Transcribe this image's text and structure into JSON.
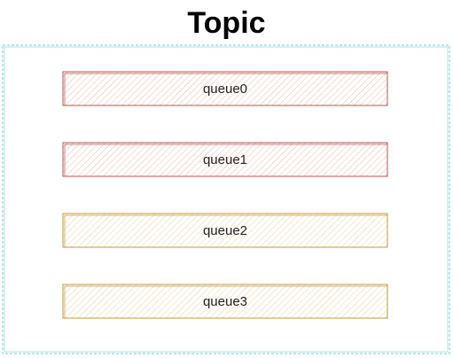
{
  "diagram": {
    "title": "Topic",
    "queues": [
      {
        "label": "queue0",
        "stroke": "#b85450",
        "hatch": "#e07a5f"
      },
      {
        "label": "queue1",
        "stroke": "#b85450",
        "hatch": "#e07a5f"
      },
      {
        "label": "queue2",
        "stroke": "#c49a3a",
        "hatch": "#f0c070"
      },
      {
        "label": "queue3",
        "stroke": "#c49a3a",
        "hatch": "#f0c070"
      }
    ],
    "colors": {
      "container_border": "#7ecbcf"
    }
  }
}
